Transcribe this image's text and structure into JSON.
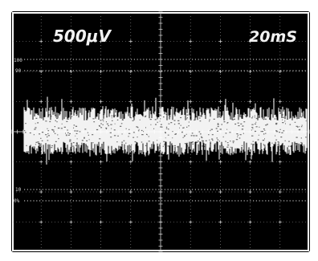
{
  "scope": {
    "vertical_scale": "500μV",
    "time_scale": "20mS",
    "reference_labels": {
      "top_100": "100",
      "top_90": "90",
      "bottom_10": "10",
      "bottom_0": "0%"
    }
  },
  "colors": {
    "screen": "#000000",
    "graticule": "#cfcfcf",
    "trace": "#ffffff",
    "border": "#ffffff"
  }
}
